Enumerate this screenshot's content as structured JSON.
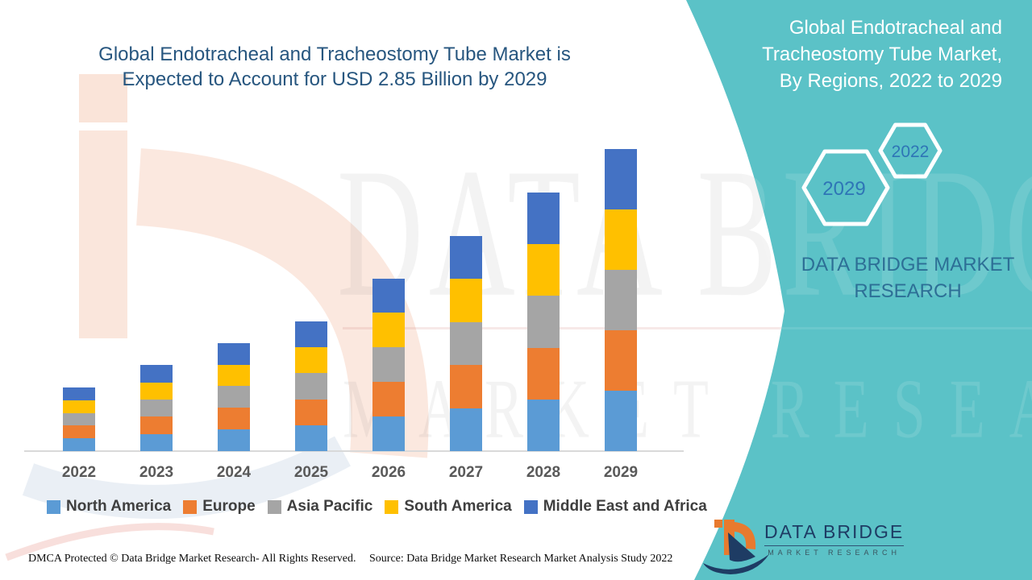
{
  "title": {
    "line1": "Global Endotracheal and Tracheostomy Tube Market is",
    "line2": "Expected to Account for USD 2.85 Billion by 2029"
  },
  "sidebar": {
    "heading_lines": [
      "Global Endotracheal and",
      "Tracheostomy Tube Market,",
      "By Regions, 2022 to 2029"
    ],
    "hexagons": [
      {
        "label": "2029"
      },
      {
        "label": "2022"
      }
    ],
    "brand_text": "DATA BRIDGE MARKET RESEARCH"
  },
  "logo": {
    "brand": "DATA BRIDGE",
    "subtitle": "MARKET RESEARCH"
  },
  "watermark": {
    "line1": "DATA BRIDGE",
    "line2": "MARKET RESEARCH"
  },
  "footer": {
    "dmca": "DMCA Protected © Data Bridge Market Research- All Rights Reserved.",
    "source": "Source: Data Bridge Market Research Market Analysis Study 2022"
  },
  "colors": {
    "teal": "#5BC2C7",
    "title_blue": "#27567F",
    "hex_year_blue": "#2E75B6",
    "sidebar_brand_blue": "#2D6F96",
    "axis_label_gray": "#595959",
    "legend_text_gray": "#3F3F3F",
    "logo_navy": "#1E3C64",
    "logo_orange": "#E87A2E"
  },
  "chart_data": {
    "type": "bar",
    "stacked": true,
    "title": "Global Endotracheal and Tracheostomy Tube Market is Expected to Account for USD 2.85 Billion by 2029",
    "unit": "USD Billion",
    "categories": [
      "2022",
      "2023",
      "2024",
      "2025",
      "2026",
      "2027",
      "2028",
      "2029"
    ],
    "totals": [
      0.6,
      0.81,
      1.02,
      1.22,
      1.63,
      2.03,
      2.44,
      2.85
    ],
    "series": [
      {
        "name": "North America",
        "color": "#5B9BD5",
        "values": [
          0.12,
          0.162,
          0.204,
          0.245,
          0.326,
          0.406,
          0.488,
          0.57
        ]
      },
      {
        "name": "Europe",
        "color": "#ED7D31",
        "values": [
          0.12,
          0.162,
          0.204,
          0.245,
          0.326,
          0.406,
          0.488,
          0.57
        ]
      },
      {
        "name": "Asia Pacific",
        "color": "#A5A5A5",
        "values": [
          0.12,
          0.162,
          0.204,
          0.245,
          0.326,
          0.406,
          0.488,
          0.57
        ]
      },
      {
        "name": "South America",
        "color": "#FFC000",
        "values": [
          0.12,
          0.162,
          0.204,
          0.245,
          0.326,
          0.406,
          0.488,
          0.57
        ]
      },
      {
        "name": "Middle East and Africa",
        "color": "#4472C4",
        "values": [
          0.12,
          0.162,
          0.204,
          0.245,
          0.326,
          0.406,
          0.488,
          0.57
        ]
      }
    ],
    "ylim": [
      0,
      2.85
    ],
    "grid": false,
    "y_axis_visible": false,
    "legend_position": "bottom",
    "value_note": "Values estimated from bar pixel heights; each year's bar is split evenly across the five regions in the graphic."
  }
}
